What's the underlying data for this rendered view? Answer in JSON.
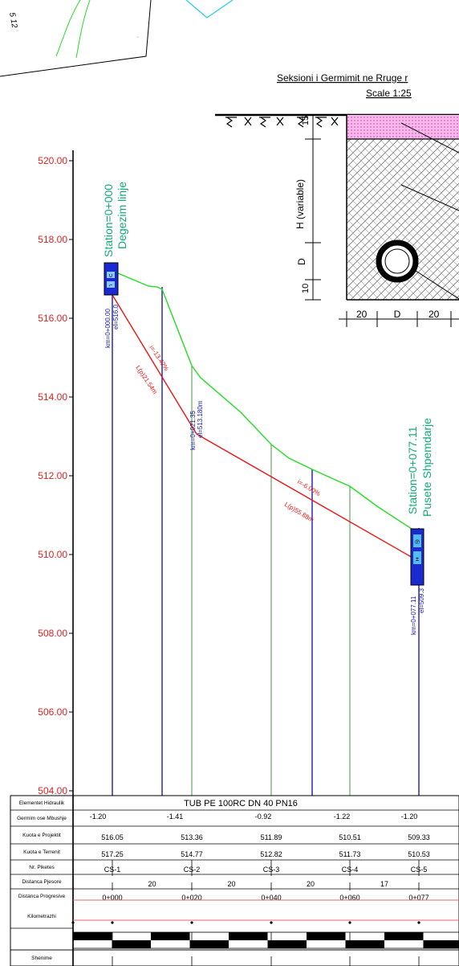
{
  "plan_label": "5 12",
  "section": {
    "title": "Seksioni i Germimit ne Rruge r",
    "scale": "Scale 1:25",
    "dim_top": "15",
    "dim_h": "H (variable)",
    "dim_d": "D",
    "dim_bottom": "10",
    "dim_width": [
      "20",
      "D",
      "20"
    ]
  },
  "profile": {
    "y_ticks": [
      "520.00",
      "518.00",
      "516.00",
      "514.00",
      "512.00",
      "510.00",
      "508.00",
      "506.00",
      "504.00"
    ],
    "start_station": "Station=0+000",
    "start_name": "Degezim linje",
    "end_station": "Station=0+077.11",
    "end_name": "Pusete Shpemdarje",
    "start_km": "km=0+000.00",
    "start_el": "el=516.0",
    "mid_km": "km=0+021.35",
    "mid_el": "el=513.180m",
    "end_km": "km=0+077.11",
    "end_el": "el=509.3",
    "slope1": "i=-13.42%",
    "length1": "L(p)21.54m",
    "slope2": "i=-6.00%",
    "length2": "L(p)55.88m",
    "box_start_glyphs": [
      "∪",
      "⌐"
    ],
    "box_end_glyphs": [
      "℗",
      "±"
    ]
  },
  "table": {
    "rows": [
      {
        "label": "Elementet  Hidraulik"
      },
      {
        "label": "Germim ose Mbushje"
      },
      {
        "label": "Kuota e Projektit"
      },
      {
        "label": "Kuota e Terrenit"
      },
      {
        "label": "Nr. Piketes"
      },
      {
        "label": "Distanca Pjesore"
      },
      {
        "label": "Distanca Progresive"
      },
      {
        "label": "Kilometrazhi"
      },
      {
        "label": "Shenime"
      }
    ],
    "pipe": "TUB PE 100RC DN 40  PN16",
    "cut_fill": [
      "-1.20",
      "-1.41",
      "-0.92",
      "-1.22",
      "-1.20"
    ],
    "project_levels": [
      "516.05",
      "513.36",
      "511.89",
      "510.51",
      "509.33"
    ],
    "terrain_levels": [
      "517.25",
      "514.77",
      "512.82",
      "511.73",
      "510.53"
    ],
    "pickets": [
      "CS-1",
      "CS-2",
      "CS-3",
      "CS-4",
      "CS-5"
    ],
    "partial_distances": [
      "20",
      "20",
      "20",
      "17"
    ],
    "progressive_distances": [
      "0+000",
      "0+020",
      "0+040",
      "0+060",
      "0+077"
    ]
  },
  "colors": {
    "terrain": "#22dd22",
    "pipe": "#ee1111",
    "axis_labels": "#dd2222",
    "station_text": "#11aa77",
    "vertical": "#1a1aaa",
    "hatch_pink": "#f4a6e6"
  }
}
